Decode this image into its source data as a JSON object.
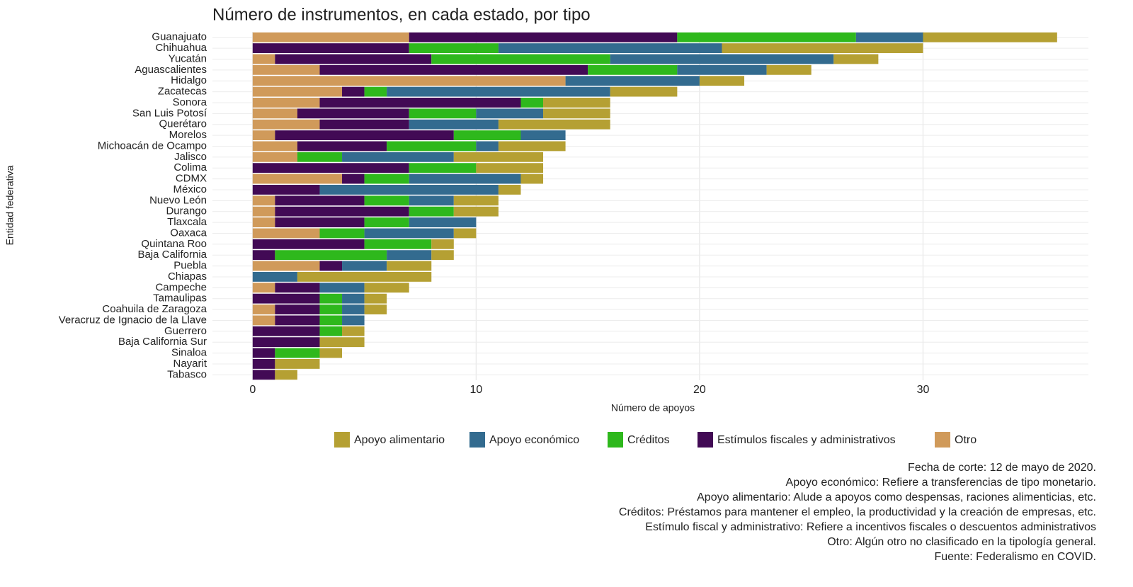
{
  "chart_data": {
    "type": "stacked-barh",
    "title": "Número de instrumentos, en cada estado, por tipo",
    "xlabel": "Número de apoyos",
    "ylabel": "Entidad federativa",
    "categories": [
      "Guanajuato",
      "Chihuahua",
      "Yucatán",
      "Aguascalientes",
      "Hidalgo",
      "Zacatecas",
      "Sonora",
      "San Luis Potosí",
      "Querétaro",
      "Morelos",
      "Michoacán de Ocampo",
      "Jalisco",
      "Colima",
      "CDMX",
      "México",
      "Nuevo León",
      "Durango",
      "Tlaxcala",
      "Oaxaca",
      "Quintana Roo",
      "Baja California",
      "Puebla",
      "Chiapas",
      "Campeche",
      "Tamaulipas",
      "Coahuila de Zaragoza",
      "Veracruz de Ignacio de la Llave",
      "Guerrero",
      "Baja California Sur",
      "Sinaloa",
      "Nayarit",
      "Tabasco"
    ],
    "series": [
      {
        "name": "Apoyo alimentario",
        "color": "#b5a033",
        "values": [
          6,
          9,
          2,
          2,
          2,
          3,
          3,
          3,
          5,
          0,
          3,
          4,
          3,
          1,
          1,
          2,
          2,
          0,
          1,
          1,
          1,
          2,
          6,
          2,
          1,
          1,
          0,
          1,
          2,
          1,
          2,
          1
        ]
      },
      {
        "name": "Apoyo económico",
        "color": "#336b8f",
        "values": [
          3,
          10,
          10,
          4,
          6,
          10,
          0,
          3,
          4,
          2,
          1,
          5,
          0,
          5,
          8,
          2,
          0,
          3,
          4,
          0,
          2,
          2,
          2,
          2,
          1,
          1,
          1,
          0,
          0,
          0,
          0,
          0
        ]
      },
      {
        "name": "Créditos",
        "color": "#2eb81c",
        "values": [
          8,
          4,
          8,
          4,
          0,
          1,
          1,
          3,
          0,
          3,
          4,
          2,
          3,
          2,
          0,
          2,
          2,
          2,
          2,
          3,
          5,
          0,
          0,
          0,
          1,
          1,
          1,
          1,
          0,
          2,
          0,
          0
        ]
      },
      {
        "name": "Estímulos fiscales y administrativos",
        "color": "#420a55",
        "values": [
          12,
          7,
          7,
          12,
          0,
          1,
          9,
          5,
          4,
          8,
          4,
          0,
          7,
          1,
          3,
          4,
          6,
          4,
          0,
          5,
          1,
          1,
          0,
          2,
          3,
          2,
          2,
          3,
          3,
          1,
          1,
          1
        ]
      },
      {
        "name": "Otro",
        "color": "#d09a5a",
        "values": [
          7,
          0,
          1,
          3,
          14,
          4,
          3,
          2,
          3,
          1,
          2,
          2,
          0,
          4,
          0,
          1,
          1,
          1,
          3,
          0,
          0,
          3,
          0,
          1,
          0,
          1,
          1,
          0,
          0,
          0,
          0,
          0
        ]
      }
    ],
    "xlim": [
      -1.8,
      37.4
    ],
    "xticks": [
      0,
      10,
      20,
      30
    ],
    "grid": true,
    "legend": "bottom",
    "notes": [
      "Fecha de corte: 12 de mayo de 2020.",
      "Apoyo económico: Refiere a transferencias de tipo monetario.",
      "Apoyo alimentario: Alude a apoyos como despensas, raciones alimenticias, etc.",
      "Créditos: Préstamos para mantener el empleo, la productividad y la creación de empresas, etc.",
      "Estímulo fiscal y administrativo: Refiere a incentivos fiscales o descuentos administrativos",
      "Otro: Algún otro no clasificado en la tipología general.",
      "Fuente: Federalismo en COVID."
    ]
  }
}
